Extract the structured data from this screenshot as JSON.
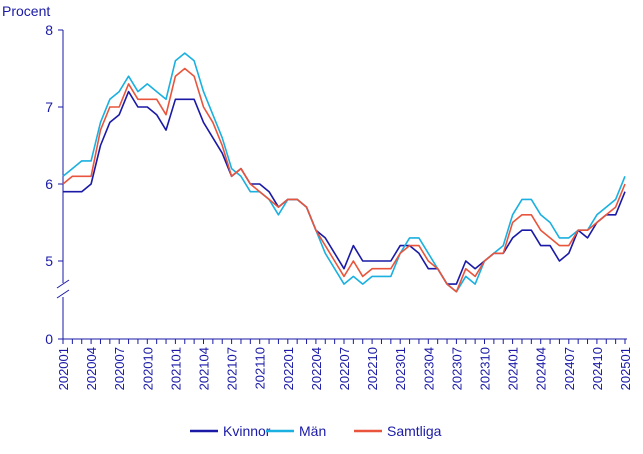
{
  "chart_data": {
    "type": "line",
    "ylabel": "Procent",
    "xlabel": "",
    "title": "",
    "ylim": [
      4,
      8
    ],
    "y_axis_break": true,
    "y_ticks": [
      "0",
      "5",
      "6",
      "7",
      "8"
    ],
    "legend_position": "bottom",
    "grid": false,
    "x": [
      "202001",
      "202002",
      "202003",
      "202004",
      "202005",
      "202006",
      "202007",
      "202008",
      "202009",
      "202010",
      "202011",
      "202012",
      "202101",
      "202102",
      "202103",
      "202104",
      "202105",
      "202106",
      "202107",
      "202108",
      "202109",
      "202110",
      "202111",
      "202112",
      "202201",
      "202202",
      "202203",
      "202204",
      "202205",
      "202206",
      "202207",
      "202208",
      "202209",
      "202210",
      "202211",
      "202212",
      "202301",
      "202302",
      "202303",
      "202304",
      "202305",
      "202306",
      "202307",
      "202308",
      "202309",
      "202310",
      "202311",
      "202312",
      "202401",
      "202402",
      "202403",
      "202404",
      "202405",
      "202406",
      "202407",
      "202408",
      "202409",
      "202410",
      "202411",
      "202412",
      "202501"
    ],
    "x_tick_labels": [
      "202001",
      "202004",
      "202007",
      "202010",
      "202101",
      "202104",
      "202107",
      "202110",
      "202201",
      "202204",
      "202207",
      "202210",
      "202301",
      "202304",
      "202307",
      "202310",
      "202401",
      "202404",
      "202407",
      "202410",
      "202501"
    ],
    "series": [
      {
        "name": "Kvinnor",
        "color": "#1a1aa6",
        "values": [
          5.9,
          5.9,
          5.9,
          6.0,
          6.5,
          6.8,
          6.9,
          7.2,
          7.0,
          7.0,
          6.9,
          6.7,
          7.1,
          7.1,
          7.1,
          6.8,
          6.6,
          6.4,
          6.1,
          6.2,
          6.0,
          6.0,
          5.9,
          5.7,
          5.8,
          5.8,
          5.7,
          5.4,
          5.3,
          5.1,
          4.9,
          5.2,
          5.0,
          5.0,
          5.0,
          5.0,
          5.2,
          5.2,
          5.1,
          4.9,
          4.9,
          4.7,
          4.7,
          5.0,
          4.9,
          5.0,
          5.1,
          5.1,
          5.3,
          5.4,
          5.4,
          5.2,
          5.2,
          5.0,
          5.1,
          5.4,
          5.3,
          5.5,
          5.6,
          5.6,
          5.9
        ]
      },
      {
        "name": "Män",
        "color": "#1ab0e0",
        "values": [
          6.1,
          6.2,
          6.3,
          6.3,
          6.8,
          7.1,
          7.2,
          7.4,
          7.2,
          7.3,
          7.2,
          7.1,
          7.6,
          7.7,
          7.6,
          7.2,
          6.9,
          6.6,
          6.2,
          6.1,
          5.9,
          5.9,
          5.8,
          5.6,
          5.8,
          5.8,
          5.7,
          5.4,
          5.1,
          4.9,
          4.7,
          4.8,
          4.7,
          4.8,
          4.8,
          4.8,
          5.1,
          5.3,
          5.3,
          5.1,
          4.9,
          4.7,
          4.6,
          4.8,
          4.7,
          5.0,
          5.1,
          5.2,
          5.6,
          5.8,
          5.8,
          5.6,
          5.5,
          5.3,
          5.3,
          5.4,
          5.4,
          5.6,
          5.7,
          5.8,
          6.1
        ]
      },
      {
        "name": "Samtliga",
        "color": "#e8553c",
        "values": [
          6.0,
          6.1,
          6.1,
          6.1,
          6.7,
          7.0,
          7.0,
          7.3,
          7.1,
          7.1,
          7.1,
          6.9,
          7.4,
          7.5,
          7.4,
          7.0,
          6.8,
          6.5,
          6.1,
          6.2,
          6.0,
          5.9,
          5.8,
          5.7,
          5.8,
          5.8,
          5.7,
          5.4,
          5.2,
          5.0,
          4.8,
          5.0,
          4.8,
          4.9,
          4.9,
          4.9,
          5.1,
          5.2,
          5.2,
          5.0,
          4.9,
          4.7,
          4.6,
          4.9,
          4.8,
          5.0,
          5.1,
          5.1,
          5.5,
          5.6,
          5.6,
          5.4,
          5.3,
          5.2,
          5.2,
          5.4,
          5.4,
          5.5,
          5.6,
          5.7,
          6.0
        ]
      }
    ]
  }
}
